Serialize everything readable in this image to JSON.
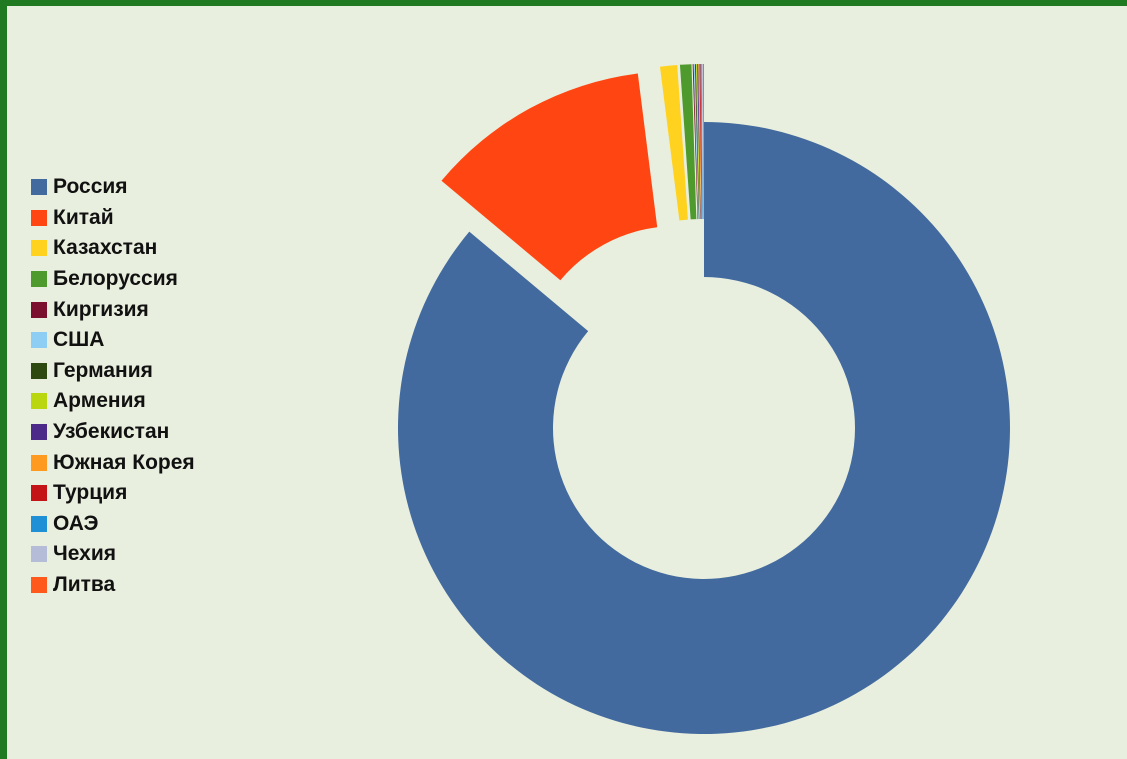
{
  "chart_data": {
    "type": "pie",
    "style": "doughnut",
    "legend_position": "left",
    "title": "",
    "slices": [
      {
        "name": "Россия",
        "value": 86.0,
        "color": "#436a9e"
      },
      {
        "name": "Китай",
        "value": 11.9,
        "color": "#ff4612"
      },
      {
        "name": "Казахстан",
        "value": 0.9,
        "color": "#ffd21f"
      },
      {
        "name": "Белоруссия",
        "value": 0.6,
        "color": "#4f9a2c"
      },
      {
        "name": "Киргизия",
        "value": 0.05,
        "color": "#7b0f2e"
      },
      {
        "name": "США",
        "value": 0.05,
        "color": "#8ecdf4"
      },
      {
        "name": "Германия",
        "value": 0.05,
        "color": "#2f4a10"
      },
      {
        "name": "Армения",
        "value": 0.05,
        "color": "#b9d60f"
      },
      {
        "name": "Узбекистан",
        "value": 0.05,
        "color": "#4b2a8a"
      },
      {
        "name": "Южная Корея",
        "value": 0.05,
        "color": "#ff9a20"
      },
      {
        "name": "Турция",
        "value": 0.05,
        "color": "#c41418"
      },
      {
        "name": "ОАЭ",
        "value": 0.05,
        "color": "#1f8fd6"
      },
      {
        "name": "Чехия",
        "value": 0.05,
        "color": "#b4bcd8"
      },
      {
        "name": "Литва",
        "value": 0.05,
        "color": "#ff5a1c"
      }
    ]
  }
}
